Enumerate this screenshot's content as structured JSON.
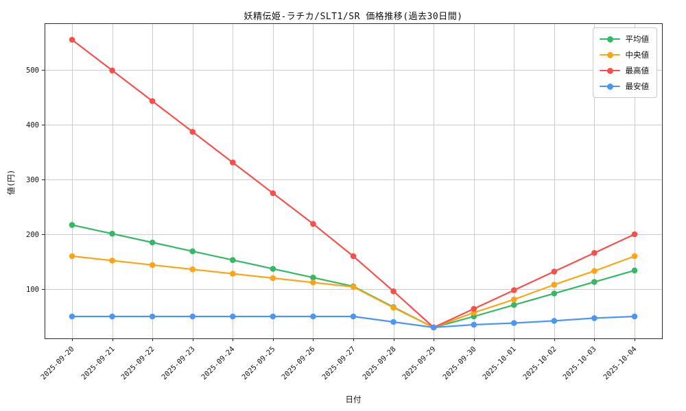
{
  "chart_data": {
    "type": "line",
    "title": "妖精伝姫-ラチカ/SLT1/SR 価格推移(過去30日間)",
    "xlabel": "日付",
    "ylabel": "値(円)",
    "x": [
      "2025-09-20",
      "2025-09-21",
      "2025-09-22",
      "2025-09-23",
      "2025-09-24",
      "2025-09-25",
      "2025-09-26",
      "2025-09-27",
      "2025-09-28",
      "2025-09-29",
      "2025-09-30",
      "2025-10-01",
      "2025-10-02",
      "2025-10-03",
      "2025-10-04"
    ],
    "ylim": [
      10,
      585
    ],
    "yticks": [
      100,
      200,
      300,
      400,
      500
    ],
    "grid": true,
    "grid_color": "#cccccc",
    "axis_color": "#2b2b2b",
    "legend_position": "upper right",
    "series": [
      {
        "name": "平均値",
        "color": "#33b864",
        "values": [
          217,
          201,
          185,
          169,
          153,
          137,
          121,
          105,
          67,
          30,
          50,
          71,
          92,
          113,
          134
        ]
      },
      {
        "name": "中央値",
        "color": "#ffa417",
        "values": [
          160,
          152,
          144,
          136,
          128,
          120,
          112,
          104,
          66,
          30,
          57,
          81,
          108,
          133,
          160
        ]
      },
      {
        "name": "最高値",
        "color": "#f94f4a",
        "values": [
          555,
          499,
          443,
          387,
          331,
          275,
          219,
          160,
          96,
          30,
          64,
          98,
          132,
          166,
          200
        ]
      },
      {
        "name": "最安値",
        "color": "#4a95f5",
        "values": [
          50,
          50,
          50,
          50,
          50,
          50,
          50,
          50,
          40,
          30,
          35,
          38,
          42,
          47,
          50
        ]
      }
    ]
  }
}
